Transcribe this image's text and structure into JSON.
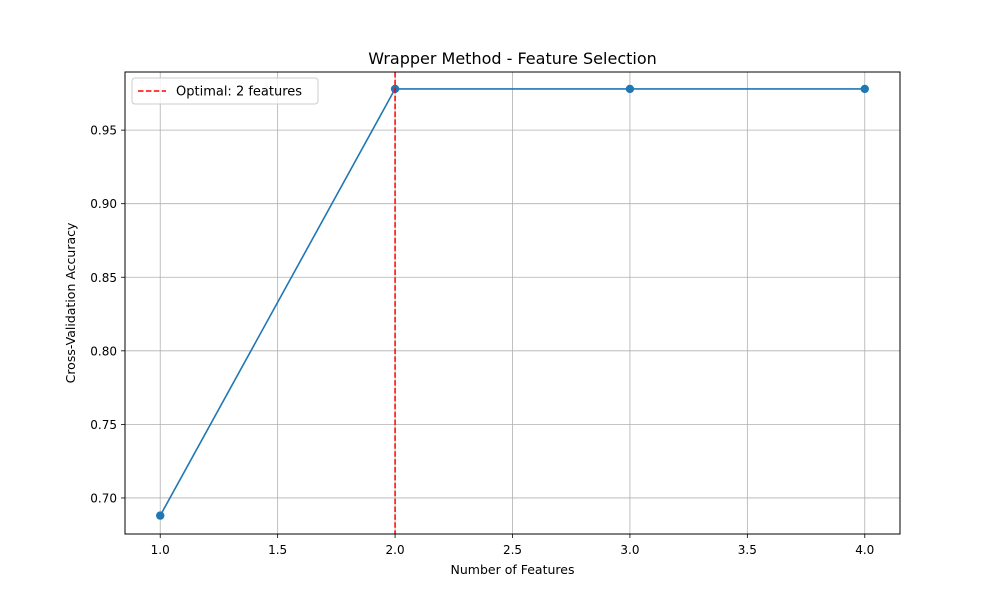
{
  "chart_data": {
    "type": "line",
    "title": "Wrapper Method - Feature Selection",
    "xlabel": "Number of Features",
    "ylabel": "Cross-Validation Accuracy",
    "xlim": [
      0.85,
      4.15
    ],
    "ylim": [
      0.6755,
      0.9895
    ],
    "xticks": [
      1.0,
      1.5,
      2.0,
      2.5,
      3.0,
      3.5,
      4.0
    ],
    "xtick_labels": [
      "1.0",
      "1.5",
      "2.0",
      "2.5",
      "3.0",
      "3.5",
      "4.0"
    ],
    "yticks": [
      0.7,
      0.75,
      0.8,
      0.85,
      0.9,
      0.95
    ],
    "ytick_labels": [
      "0.70",
      "0.75",
      "0.80",
      "0.85",
      "0.90",
      "0.95"
    ],
    "grid": true,
    "series": [
      {
        "x": [
          1,
          2,
          3,
          4
        ],
        "y": [
          0.688,
          0.978,
          0.978,
          0.978
        ],
        "color": "#1f77b4",
        "marker": "circle"
      }
    ],
    "reference_lines": [
      {
        "orientation": "vertical",
        "x": 2,
        "label": "Optimal: 2 features",
        "color": "#ff0000",
        "style": "dashed"
      }
    ],
    "legend": {
      "position": "top-left",
      "entries": [
        "Optimal: 2 features"
      ]
    }
  }
}
